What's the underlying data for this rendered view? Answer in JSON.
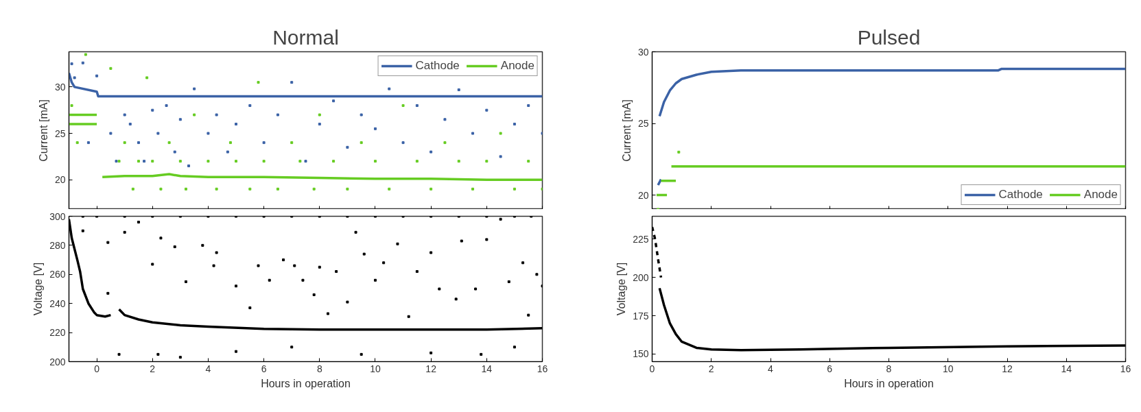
{
  "chart_data": [
    {
      "type": "line",
      "title": "Normal",
      "ylabel": "Current [mA]",
      "xlim": [
        -1,
        16
      ],
      "xticks": [
        0,
        2,
        4,
        6,
        8,
        10,
        12,
        14,
        16
      ],
      "ylim": [
        16.8,
        33.8
      ],
      "yticks": [
        20,
        25,
        30
      ],
      "tick_labels": "y",
      "grid": false,
      "legend": "top right",
      "series": [
        {
          "name": "Cathode",
          "color": "#3b62a6",
          "x": [
            -1,
            -0.9,
            -0.8,
            0,
            0.05,
            1,
            2,
            3,
            4,
            6,
            8,
            10,
            12,
            14,
            16
          ],
          "values": [
            31.5,
            30.5,
            30,
            29.5,
            29,
            29,
            29,
            29,
            29,
            29,
            29,
            29,
            29,
            29,
            29
          ]
        },
        {
          "name": "Anode",
          "color": "#66cc22",
          "x": [
            0.2,
            1,
            2,
            2.6,
            3,
            4,
            6,
            8,
            10,
            12,
            14,
            16
          ],
          "values": [
            20.3,
            20.4,
            20.4,
            20.6,
            20.4,
            20.3,
            20.3,
            20.2,
            20.1,
            20.1,
            20,
            20
          ]
        },
        {
          "color": "#66cc22",
          "x": [
            -1,
            0
          ],
          "values": [
            27,
            27
          ]
        },
        {
          "color": "#66cc22",
          "x": [
            -1,
            0
          ],
          "values": [
            26,
            26
          ]
        },
        {
          "type": "scatter",
          "marker": "square",
          "color": "#3b62a6",
          "x": [
            -0.9,
            -0.8,
            -0.5,
            -0.3,
            0,
            0.5,
            0.7,
            1,
            1.2,
            1.5,
            1.7,
            2,
            2.2,
            2.5,
            2.8,
            3,
            3.3,
            3.5,
            4,
            4.3,
            4.7,
            5,
            5.5,
            6,
            6.5,
            7,
            7.5,
            8,
            8.5,
            9,
            9.5,
            10,
            10.5,
            11,
            11.5,
            12,
            12.5,
            13,
            13.5,
            14,
            14.5,
            15,
            15.5,
            16
          ],
          "values": [
            32.5,
            31,
            32.6,
            24,
            31.2,
            25,
            22,
            27,
            26,
            24,
            22,
            27.5,
            25,
            28,
            23,
            26.5,
            21.5,
            29.8,
            25,
            27,
            23,
            26,
            28,
            24,
            27,
            30.5,
            22,
            26,
            28.5,
            23.5,
            27,
            25.5,
            29.8,
            24,
            28,
            23,
            26.5,
            29.7,
            25,
            27.5,
            22.5,
            26,
            28,
            25
          ]
        },
        {
          "type": "scatter",
          "marker": "square",
          "color": "#66cc22",
          "x": [
            -0.9,
            -0.7,
            -0.4,
            0.5,
            0.8,
            1,
            1.3,
            1.5,
            1.8,
            2,
            2.3,
            2.6,
            3,
            3.2,
            3.5,
            4,
            4.3,
            4.8,
            5,
            5.5,
            5.8,
            6,
            6.5,
            7,
            7.3,
            7.8,
            8,
            8.5,
            9,
            9.5,
            10,
            10.5,
            11,
            11.5,
            12,
            12.5,
            13,
            13.5,
            14,
            14.5,
            15,
            15.5,
            16
          ],
          "values": [
            28,
            24,
            33.5,
            32,
            22,
            24,
            19,
            22,
            31,
            22,
            19,
            24,
            22,
            19,
            27,
            22,
            19,
            24,
            22,
            19,
            30.5,
            22,
            19,
            24,
            22,
            19,
            27,
            22,
            19,
            24,
            22,
            19,
            28,
            22,
            19,
            24,
            22,
            19,
            22,
            25,
            19,
            22,
            19
          ]
        }
      ]
    },
    {
      "type": "line",
      "xlabel": "Hours in operation",
      "ylabel": "Voltage [V]",
      "xlim": [
        -1,
        16
      ],
      "xticks": [
        0,
        2,
        4,
        6,
        8,
        10,
        12,
        14,
        16
      ],
      "ylim": [
        200,
        300
      ],
      "yticks": [
        200,
        220,
        240,
        260,
        280,
        300
      ],
      "grid": false,
      "series": [
        {
          "color": "#000000",
          "x": [
            -1,
            -0.9,
            -0.7,
            -0.6,
            -0.5,
            -0.3,
            -0.1,
            0,
            0.3,
            0.5
          ],
          "values": [
            298,
            285,
            270,
            262,
            250,
            240,
            234,
            232,
            231,
            232
          ]
        },
        {
          "color": "#000000",
          "x": [
            0.8,
            1,
            1.5,
            2,
            3,
            4,
            6,
            8,
            10,
            12,
            14,
            16
          ],
          "values": [
            236,
            232,
            229,
            227,
            225,
            224,
            222.5,
            222,
            222,
            222,
            222,
            223
          ]
        },
        {
          "type": "scatter",
          "marker": "square",
          "color": "#000000",
          "x": [
            -0.5,
            0.4,
            0.4,
            1,
            1.5,
            2,
            2.3,
            2.8,
            3.2,
            3.8,
            4.2,
            4.3,
            5,
            5.5,
            5.8,
            6.2,
            6.7,
            7.1,
            7.4,
            7.8,
            8,
            8.3,
            8.6,
            9,
            9.3,
            9.6,
            10,
            10.3,
            10.8,
            11.2,
            11.5,
            12,
            12.3,
            12.9,
            13.1,
            13.6,
            14,
            14.5,
            14.8,
            15.3,
            15.5,
            15.8,
            16,
            0.8,
            2.2,
            3,
            5,
            7,
            9.5,
            12,
            13.8,
            15
          ],
          "values": [
            290,
            282,
            247,
            289,
            296,
            267,
            285,
            279,
            255,
            280,
            266,
            275,
            252,
            237,
            266,
            256,
            270,
            266,
            256,
            246,
            265,
            233,
            262,
            241,
            289,
            274,
            256,
            268,
            281,
            231,
            262,
            275,
            250,
            243,
            283,
            250,
            284,
            298,
            255,
            268,
            232,
            260,
            252,
            205,
            205,
            203,
            207,
            210,
            205,
            206,
            205,
            210
          ]
        },
        {
          "type": "scatter",
          "marker": "square",
          "color": "#000000",
          "x": [
            -0.5,
            0,
            1,
            2,
            3,
            4,
            5,
            6,
            7,
            8,
            9,
            10,
            11,
            12,
            13,
            14,
            15,
            15.6
          ],
          "values": [
            300,
            300,
            300,
            300,
            300,
            300,
            300,
            300,
            300,
            300,
            300,
            300,
            300,
            300,
            300,
            300,
            300,
            300
          ]
        }
      ]
    },
    {
      "type": "line",
      "title": "Pulsed",
      "ylabel": "Current [mA]",
      "xlim": [
        0,
        16
      ],
      "xticks": [
        0,
        2,
        4,
        6,
        8,
        10,
        12,
        14,
        16
      ],
      "ylim": [
        19,
        30
      ],
      "yticks": [
        20,
        25,
        30
      ],
      "tick_labels": "y",
      "grid": false,
      "legend": "bottom right",
      "series": [
        {
          "name": "Cathode",
          "color": "#3b62a6",
          "x": [
            0.25,
            0.4,
            0.6,
            0.8,
            1,
            1.5,
            2,
            3,
            11.7,
            11.8,
            16
          ],
          "values": [
            25.5,
            26.5,
            27.3,
            27.8,
            28.1,
            28.4,
            28.6,
            28.7,
            28.7,
            28.8,
            28.8
          ]
        },
        {
          "name": "Anode",
          "color": "#66cc22",
          "x": [
            0.65,
            16
          ],
          "values": [
            22,
            22
          ]
        },
        {
          "color": "#3b62a6",
          "x": [
            0.2,
            0.3
          ],
          "values": [
            20.7,
            21.1
          ]
        },
        {
          "color": "#66cc22",
          "x": [
            0.15,
            0.5
          ],
          "values": [
            20,
            20
          ]
        },
        {
          "color": "#66cc22",
          "x": [
            0.3,
            0.8
          ],
          "values": [
            21,
            21
          ]
        },
        {
          "type": "scatter",
          "marker": "square",
          "color": "#66cc22",
          "x": [
            0.9,
            0.2
          ],
          "values": [
            23,
            19
          ]
        }
      ]
    },
    {
      "type": "line",
      "xlabel": "Hours in operation",
      "ylabel": "Voltage [V]",
      "xlim": [
        0,
        16
      ],
      "xticks": [
        0,
        2,
        4,
        6,
        8,
        10,
        12,
        14,
        16
      ],
      "ylim": [
        145,
        240
      ],
      "yticks": [
        150,
        175,
        200,
        225
      ],
      "grid": false,
      "series": [
        {
          "line_style": "dashed",
          "color": "#000000",
          "x": [
            0,
            0.1,
            0.2,
            0.3
          ],
          "values": [
            233,
            225,
            212,
            200
          ]
        },
        {
          "color": "#000000",
          "x": [
            0.25,
            0.4,
            0.6,
            0.8,
            1,
            1.5,
            2,
            3,
            5,
            8,
            12,
            16
          ],
          "values": [
            193,
            182,
            170,
            163,
            158,
            154,
            153,
            152.5,
            153,
            154,
            155,
            155.5
          ]
        }
      ]
    }
  ]
}
